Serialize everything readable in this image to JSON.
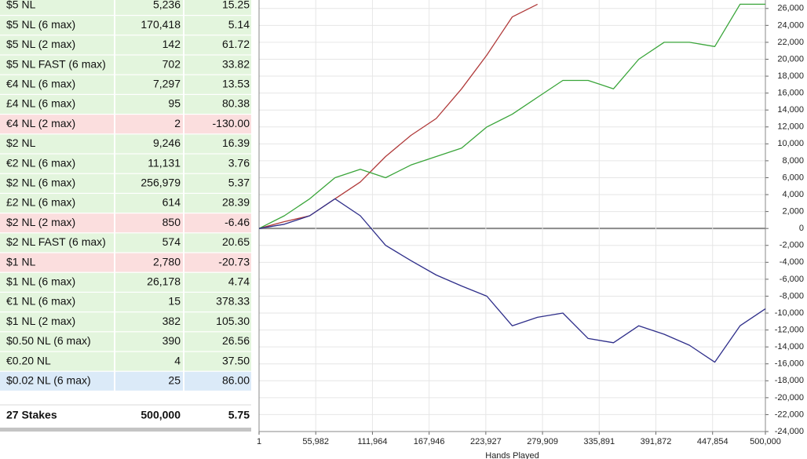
{
  "table": {
    "rows": [
      [
        "$5 NL",
        "5,236",
        "15.25"
      ],
      [
        "$5 NL (6 max)",
        "170,418",
        "5.14"
      ],
      [
        "$5 NL (2 max)",
        "142",
        "61.72"
      ],
      [
        "$5 NL FAST (6 max)",
        "702",
        "33.82"
      ],
      [
        "€4 NL (6 max)",
        "7,297",
        "13.53"
      ],
      [
        "£4 NL (6 max)",
        "95",
        "80.38"
      ],
      [
        "€4 NL (2 max)",
        "2",
        "-130.00"
      ],
      [
        "$2 NL",
        "9,246",
        "16.39"
      ],
      [
        "€2 NL (6 max)",
        "11,131",
        "3.76"
      ],
      [
        "$2 NL (6 max)",
        "256,979",
        "5.37"
      ],
      [
        "£2 NL (6 max)",
        "614",
        "28.39"
      ],
      [
        "$2 NL (2 max)",
        "850",
        "-6.46"
      ],
      [
        "$2 NL FAST (6 max)",
        "574",
        "20.65"
      ],
      [
        "$1 NL",
        "2,780",
        "-20.73"
      ],
      [
        "$1 NL (6 max)",
        "26,178",
        "4.74"
      ],
      [
        "€1 NL (6 max)",
        "15",
        "378.33"
      ],
      [
        "$1 NL (2 max)",
        "382",
        "105.30"
      ],
      [
        "$0.50 NL (6 max)",
        "390",
        "26.56"
      ],
      [
        "€0.20 NL",
        "4",
        "37.50"
      ],
      [
        "$0.02 NL (6 max)",
        "25",
        "86.00"
      ]
    ],
    "selected": 19,
    "footer": [
      "27 Stakes",
      "500,000",
      "5.75"
    ]
  },
  "chart_data": {
    "type": "line",
    "x_label": "Hands Played",
    "x": [
      1,
      25000,
      50000,
      75000,
      100000,
      125000,
      150000,
      175000,
      200000,
      225000,
      250000,
      275000,
      300000,
      325000,
      350000,
      375000,
      400000,
      425000,
      450000,
      475000,
      500000
    ],
    "series": [
      {
        "color": "#b03a3a",
        "values": [
          0,
          800,
          1500,
          3500,
          5500,
          8500,
          11000,
          13000,
          16500,
          20500,
          25000,
          26500,
          null,
          null,
          null,
          null,
          null,
          null,
          null,
          null,
          null
        ]
      },
      {
        "color": "#3aa53a",
        "values": [
          0,
          1500,
          3500,
          6000,
          7000,
          6000,
          7500,
          8500,
          9500,
          12000,
          13500,
          15500,
          17500,
          17500,
          16500,
          20000,
          22000,
          22000,
          21500,
          26500,
          26500
        ]
      },
      {
        "color": "#2e2e8a",
        "values": [
          0,
          500,
          1500,
          3500,
          1500,
          -2000,
          -3800,
          -5500,
          -6800,
          -8000,
          -11500,
          -10500,
          -10000,
          -13000,
          -13500,
          -11500,
          -12500,
          -13800,
          -15800,
          -11500,
          -9500
        ]
      }
    ],
    "xlim": [
      1,
      500000
    ],
    "xticks": [
      1,
      {
        "value": 55982,
        "label": "55,982"
      },
      {
        "value": 111964,
        "label": "111,964"
      },
      {
        "value": 167946,
        "label": "167,946"
      },
      {
        "value": 223927,
        "label": "223,927"
      },
      {
        "value": 279909,
        "label": "279,909"
      },
      {
        "value": 335891,
        "label": "335,891"
      },
      {
        "value": 391872,
        "label": "391,872"
      },
      {
        "value": 447854,
        "label": "447,854"
      },
      {
        "value": 500000,
        "label": "500,000"
      }
    ],
    "ylim": [
      -24000,
      27000
    ],
    "yticks": [
      {
        "value": -24000,
        "label": "-24,000"
      },
      {
        "value": -22000,
        "label": "-22,000"
      },
      {
        "value": -20000,
        "label": "-20,000"
      },
      {
        "value": -18000,
        "label": "-18,000"
      },
      {
        "value": -16000,
        "label": "-16,000"
      },
      {
        "value": -14000,
        "label": "-14,000"
      },
      {
        "value": -12000,
        "label": "-12,000"
      },
      {
        "value": -10000,
        "label": "-10,000"
      },
      {
        "value": -8000,
        "label": "-8,000"
      },
      {
        "value": -6000,
        "label": "-6,000"
      },
      {
        "value": -4000,
        "label": "-4,000"
      },
      {
        "value": -2000,
        "label": "-2,000"
      },
      0,
      {
        "value": 2000,
        "label": "2,000"
      },
      {
        "value": 4000,
        "label": "4,000"
      },
      {
        "value": 6000,
        "label": "6,000"
      },
      {
        "value": 8000,
        "label": "8,000"
      },
      {
        "value": 10000,
        "label": "10,000"
      },
      {
        "value": 12000,
        "label": "12,000"
      },
      {
        "value": 14000,
        "label": "14,000"
      },
      {
        "value": 16000,
        "label": "16,000"
      },
      {
        "value": 18000,
        "label": "18,000"
      },
      {
        "value": 20000,
        "label": "20,000"
      },
      {
        "value": 22000,
        "label": "22,000"
      },
      {
        "value": 24000,
        "label": "24,000"
      },
      {
        "value": 26000,
        "label": "26,000"
      }
    ],
    "grid": true
  }
}
